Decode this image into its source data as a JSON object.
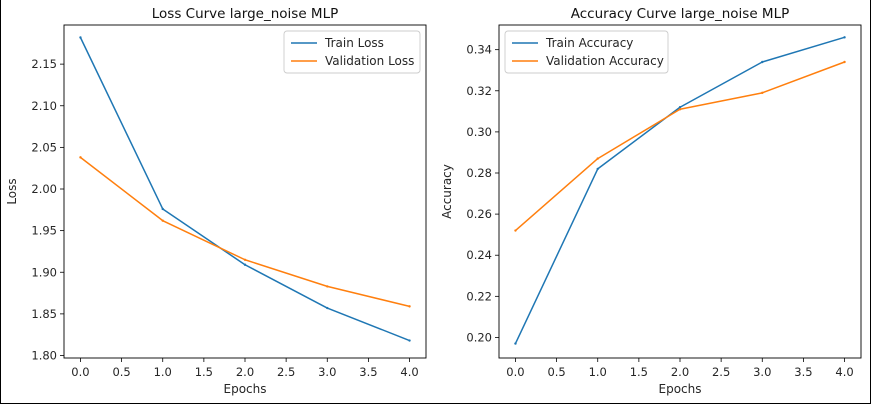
{
  "chart_data": [
    {
      "type": "line",
      "title": "Loss Curve large_noise MLP",
      "xlabel": "Epochs",
      "ylabel": "Loss",
      "x": [
        0,
        1,
        2,
        3,
        4
      ],
      "xlim": [
        -0.2,
        4.2
      ],
      "ylim": [
        1.797,
        2.197
      ],
      "xticks": [
        "0.0",
        "0.5",
        "1.0",
        "1.5",
        "2.0",
        "2.5",
        "3.0",
        "3.5",
        "4.0"
      ],
      "yticks": [
        "1.80",
        "1.85",
        "1.90",
        "1.95",
        "2.00",
        "2.05",
        "2.10",
        "2.15"
      ],
      "legend_position": "top-right",
      "grid": false,
      "series": [
        {
          "name": "Train Loss",
          "color": "#1f77b4",
          "values": [
            2.182,
            1.976,
            1.909,
            1.857,
            1.818
          ]
        },
        {
          "name": "Validation Loss",
          "color": "#ff7f0e",
          "values": [
            2.038,
            1.962,
            1.915,
            1.883,
            1.859
          ]
        }
      ]
    },
    {
      "type": "line",
      "title": "Accuracy Curve large_noise MLP",
      "xlabel": "Epochs",
      "ylabel": "Accuracy",
      "x": [
        0,
        1,
        2,
        3,
        4
      ],
      "xlim": [
        -0.2,
        4.2
      ],
      "ylim": [
        0.19,
        0.352
      ],
      "xticks": [
        "0.0",
        "0.5",
        "1.0",
        "1.5",
        "2.0",
        "2.5",
        "3.0",
        "3.5",
        "4.0"
      ],
      "yticks": [
        "0.20",
        "0.22",
        "0.24",
        "0.26",
        "0.28",
        "0.30",
        "0.32",
        "0.34"
      ],
      "legend_position": "top-left",
      "grid": false,
      "series": [
        {
          "name": "Train Accuracy",
          "color": "#1f77b4",
          "values": [
            0.197,
            0.282,
            0.312,
            0.334,
            0.346
          ]
        },
        {
          "name": "Validation Accuracy",
          "color": "#ff7f0e",
          "values": [
            0.252,
            0.287,
            0.311,
            0.319,
            0.334
          ]
        }
      ]
    }
  ]
}
